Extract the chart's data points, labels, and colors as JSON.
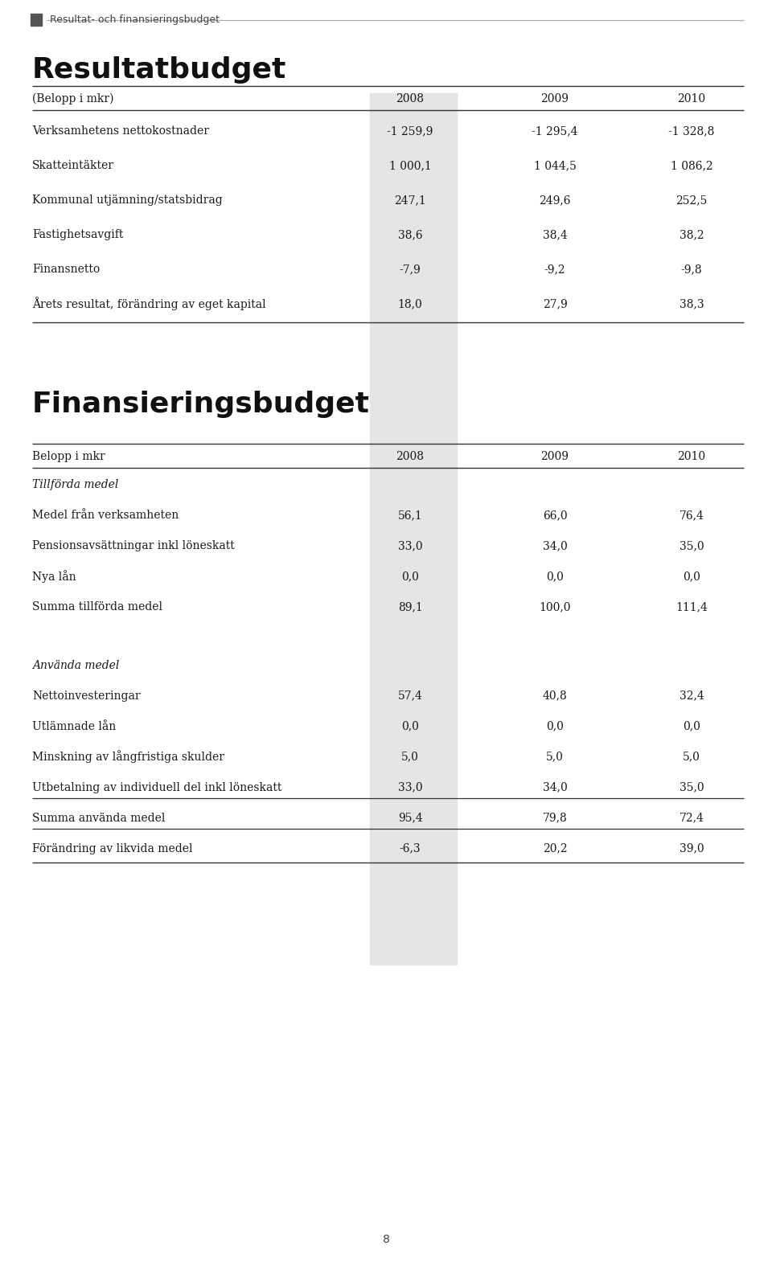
{
  "page_bg": "#ffffff",
  "header_bar_color": "#555555",
  "header_text": "Resultat- och finansieringsbudget",
  "section1_title": "Resultatbudget",
  "section2_title": "Finansieringsbudget",
  "resultat_col_header": "(Belopp i mkr)",
  "finansiering_col_header": "Belopp i mkr",
  "resultat_rows": [
    {
      "label": "Verksamhetens nettokostnader",
      "vals": [
        "-1 259,9",
        "-1 295,4",
        "-1 328,8"
      ]
    },
    {
      "label": "Skatteintäkter",
      "vals": [
        "1 000,1",
        "1 044,5",
        "1 086,2"
      ]
    },
    {
      "label": "Kommunal utjämning/statsbidrag",
      "vals": [
        "247,1",
        "249,6",
        "252,5"
      ]
    },
    {
      "label": "Fastighetsavgift",
      "vals": [
        "38,6",
        "38,4",
        "38,2"
      ]
    },
    {
      "label": "Finansnetto",
      "vals": [
        "-7,9",
        "-9,2",
        "-9,8"
      ]
    },
    {
      "label": "Årets resultat, förändring av eget kapital",
      "vals": [
        "18,0",
        "27,9",
        "38,3"
      ]
    }
  ],
  "finansiering_rows": [
    {
      "label": "Tillförda medel",
      "vals": [
        "",
        "",
        ""
      ],
      "italic": true,
      "subheader": true
    },
    {
      "label": "Medel från verksamheten",
      "vals": [
        "56,1",
        "66,0",
        "76,4"
      ]
    },
    {
      "label": "Pensionsavsättningar inkl löneskatt",
      "vals": [
        "33,0",
        "34,0",
        "35,0"
      ]
    },
    {
      "label": "Nya lån",
      "vals": [
        "0,0",
        "0,0",
        "0,0"
      ]
    },
    {
      "label": "Summa tillförda medel",
      "vals": [
        "89,1",
        "100,0",
        "111,4"
      ]
    },
    {
      "label": "",
      "vals": [
        "",
        "",
        ""
      ],
      "spacer": true
    },
    {
      "label": "Använda medel",
      "vals": [
        "",
        "",
        ""
      ],
      "italic": true,
      "subheader": true
    },
    {
      "label": "Nettoinvesteringar",
      "vals": [
        "57,4",
        "40,8",
        "32,4"
      ]
    },
    {
      "label": "Utlämnade lån",
      "vals": [
        "0,0",
        "0,0",
        "0,0"
      ]
    },
    {
      "label": "Minskning av långfristiga skulder",
      "vals": [
        "5,0",
        "5,0",
        "5,0"
      ]
    },
    {
      "label": "Utbetalning av individuell del inkl löneskatt",
      "vals": [
        "33,0",
        "34,0",
        "35,0"
      ]
    },
    {
      "label": "Summa använda medel",
      "vals": [
        "95,4",
        "79,8",
        "72,4"
      ],
      "top_line": true
    },
    {
      "label": "Förändring av likvida medel",
      "vals": [
        "-6,3",
        "20,2",
        "39,0"
      ],
      "top_line": true
    }
  ],
  "page_number": "8",
  "shade_color": "#e5e5e5",
  "line_color_dark": "#333333",
  "line_color_light": "#aaaaaa",
  "text_color": "#1a1a1a"
}
